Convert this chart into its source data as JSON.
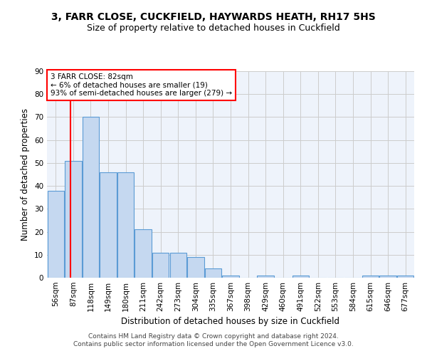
{
  "title": "3, FARR CLOSE, CUCKFIELD, HAYWARDS HEATH, RH17 5HS",
  "subtitle": "Size of property relative to detached houses in Cuckfield",
  "xlabel": "Distribution of detached houses by size in Cuckfield",
  "ylabel": "Number of detached properties",
  "categories": [
    "56sqm",
    "87sqm",
    "118sqm",
    "149sqm",
    "180sqm",
    "211sqm",
    "242sqm",
    "273sqm",
    "304sqm",
    "335sqm",
    "367sqm",
    "398sqm",
    "429sqm",
    "460sqm",
    "491sqm",
    "522sqm",
    "553sqm",
    "584sqm",
    "615sqm",
    "646sqm",
    "677sqm"
  ],
  "values": [
    38,
    51,
    70,
    46,
    46,
    21,
    11,
    11,
    9,
    4,
    1,
    0,
    1,
    0,
    1,
    0,
    0,
    0,
    1,
    1,
    1
  ],
  "bar_color": "#c5d8f0",
  "bar_edge_color": "#5b9bd5",
  "annotation_box_text": "3 FARR CLOSE: 82sqm\n← 6% of detached houses are smaller (19)\n93% of semi-detached houses are larger (279) →",
  "annotation_box_color": "white",
  "annotation_box_edge_color": "red",
  "vline_color": "red",
  "vline_x": 0.85,
  "ylim": [
    0,
    90
  ],
  "yticks": [
    0,
    10,
    20,
    30,
    40,
    50,
    60,
    70,
    80,
    90
  ],
  "grid_color": "#cccccc",
  "bg_color": "#eef3fb",
  "footer": "Contains HM Land Registry data © Crown copyright and database right 2024.\nContains public sector information licensed under the Open Government Licence v3.0.",
  "title_fontsize": 10,
  "subtitle_fontsize": 9,
  "xlabel_fontsize": 8.5,
  "ylabel_fontsize": 8.5,
  "tick_fontsize": 7.5,
  "annotation_fontsize": 7.5,
  "footer_fontsize": 6.5
}
